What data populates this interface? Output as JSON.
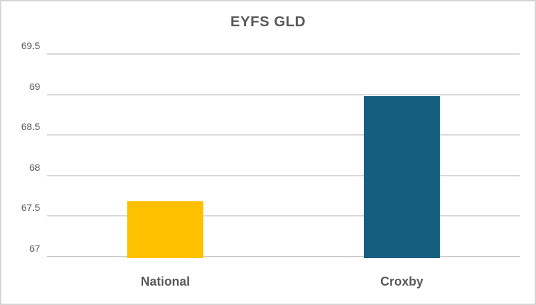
{
  "chart_data": {
    "type": "bar",
    "title": "EYFS GLD",
    "categories": [
      "National",
      "Croxby"
    ],
    "values": [
      67.7,
      69
    ],
    "xlabel": "",
    "ylabel": "",
    "ylim": [
      67,
      69.5
    ],
    "ytick_step": 0.5,
    "ytick_labels": [
      "67",
      "67.5",
      "68",
      "68.5",
      "69",
      "69.5"
    ],
    "bar_colors": [
      "#FFC000",
      "#155E80"
    ],
    "grid": true,
    "legend": false
  },
  "colors": {
    "gridline": "#d9d9d9",
    "axis_line": "#cfcfcf",
    "text": "#595959",
    "frame_border": "#d6d6d6",
    "background": "#ffffff"
  }
}
